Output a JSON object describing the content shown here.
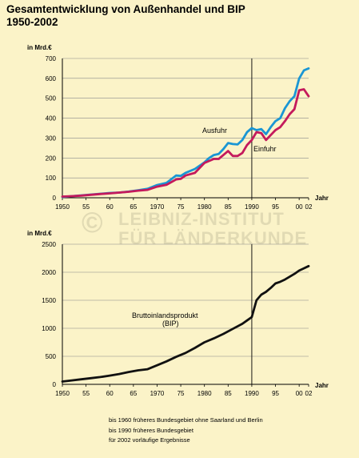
{
  "title": {
    "line1": "Gesamtentwicklung von Außenhandel und BIP",
    "line2": "1950-2002"
  },
  "watermark": {
    "symbol": "©",
    "line1": "LEIBNIZ-INSTITUT",
    "line2": "FÜR LÄNDERKUNDE"
  },
  "notes": [
    "bis 1960 früheres Bundesgebiet ohne Saarland und Berlin",
    "bis 1990 früheres Bundesgebiet",
    "für 2002 vorläufige Ergebnisse"
  ],
  "colors": {
    "background": "#fbf3c8",
    "ausfuhr": "#1a96d4",
    "einfuhr": "#c41a5c",
    "bip": "#111111"
  },
  "chart_data": [
    {
      "type": "line",
      "ylabel": "in Mrd.€",
      "xlabel": "Jahr",
      "xlim": [
        1950,
        2002
      ],
      "ylim": [
        0,
        700
      ],
      "xticks": [
        1950,
        1955,
        1960,
        1965,
        1970,
        1975,
        1980,
        1985,
        1990,
        1995,
        2000,
        2002
      ],
      "xtick_labels": [
        "1950",
        "55",
        "60",
        "65",
        "1970",
        "75",
        "1980",
        "85",
        "1990",
        "95",
        "00",
        "02"
      ],
      "yticks": [
        0,
        100,
        200,
        300,
        400,
        500,
        600,
        700
      ],
      "separator_x": 1990,
      "series": [
        {
          "name": "Ausfuhr",
          "x": [
            1950,
            1952,
            1954,
            1956,
            1958,
            1960,
            1962,
            1964,
            1966,
            1968,
            1970,
            1972,
            1974,
            1975,
            1976,
            1978,
            1980,
            1981,
            1982,
            1983,
            1984,
            1985,
            1986,
            1987,
            1988,
            1989,
            1990,
            1991,
            1992,
            1993,
            1994,
            1995,
            1996,
            1997,
            1998,
            1999,
            2000,
            2001,
            2002
          ],
          "y": [
            4,
            8,
            12,
            16,
            20,
            24,
            26,
            31,
            38,
            45,
            64,
            75,
            112,
            110,
            125,
            145,
            178,
            200,
            215,
            220,
            245,
            275,
            270,
            268,
            290,
            330,
            350,
            340,
            345,
            320,
            355,
            385,
            400,
            450,
            485,
            510,
            600,
            640,
            650
          ]
        },
        {
          "name": "Einfuhr",
          "x": [
            1950,
            1952,
            1954,
            1956,
            1958,
            1960,
            1962,
            1964,
            1966,
            1968,
            1970,
            1972,
            1974,
            1975,
            1976,
            1978,
            1980,
            1981,
            1982,
            1983,
            1984,
            1985,
            1986,
            1987,
            1988,
            1989,
            1990,
            1991,
            1992,
            1993,
            1994,
            1995,
            1996,
            1997,
            1998,
            1999,
            2000,
            2001,
            2002
          ],
          "y": [
            6,
            8,
            11,
            15,
            19,
            22,
            26,
            30,
            36,
            40,
            56,
            65,
            92,
            95,
            112,
            125,
            175,
            185,
            195,
            195,
            215,
            235,
            210,
            210,
            225,
            265,
            290,
            330,
            325,
            290,
            315,
            340,
            355,
            385,
            420,
            445,
            540,
            545,
            510
          ]
        }
      ],
      "annotations": [
        "Ausfuhr",
        "Einfuhr"
      ]
    },
    {
      "type": "line",
      "ylabel": "in Mrd.€",
      "xlabel": "Jahr",
      "xlim": [
        1950,
        2002
      ],
      "ylim": [
        0,
        2500
      ],
      "xticks": [
        1950,
        1955,
        1960,
        1965,
        1970,
        1975,
        1980,
        1985,
        1990,
        1995,
        2000,
        2002
      ],
      "xtick_labels": [
        "1950",
        "55",
        "60",
        "65",
        "1970",
        "75",
        "1980",
        "85",
        "1990",
        "95",
        "00",
        "02"
      ],
      "yticks": [
        0,
        500,
        1000,
        1500,
        2000,
        2500
      ],
      "separator_x": 1990,
      "series": [
        {
          "name": "Bruttoinlandsprodukt (BIP)",
          "x": [
            1950,
            1952,
            1954,
            1956,
            1958,
            1960,
            1962,
            1964,
            1966,
            1968,
            1970,
            1972,
            1974,
            1976,
            1978,
            1980,
            1982,
            1984,
            1986,
            1988,
            1989,
            1990,
            1991,
            1992,
            1993,
            1994,
            1995,
            1996,
            1997,
            1998,
            1999,
            2000,
            2001,
            2002
          ],
          "y": [
            50,
            70,
            90,
            110,
            130,
            155,
            185,
            220,
            250,
            270,
            340,
            410,
            490,
            560,
            650,
            750,
            820,
            900,
            990,
            1080,
            1140,
            1200,
            1500,
            1600,
            1650,
            1720,
            1800,
            1830,
            1870,
            1920,
            1970,
            2030,
            2070,
            2110
          ]
        }
      ],
      "annotations": [
        "Bruttoinlandsprodukt",
        "(BIP)"
      ]
    }
  ]
}
